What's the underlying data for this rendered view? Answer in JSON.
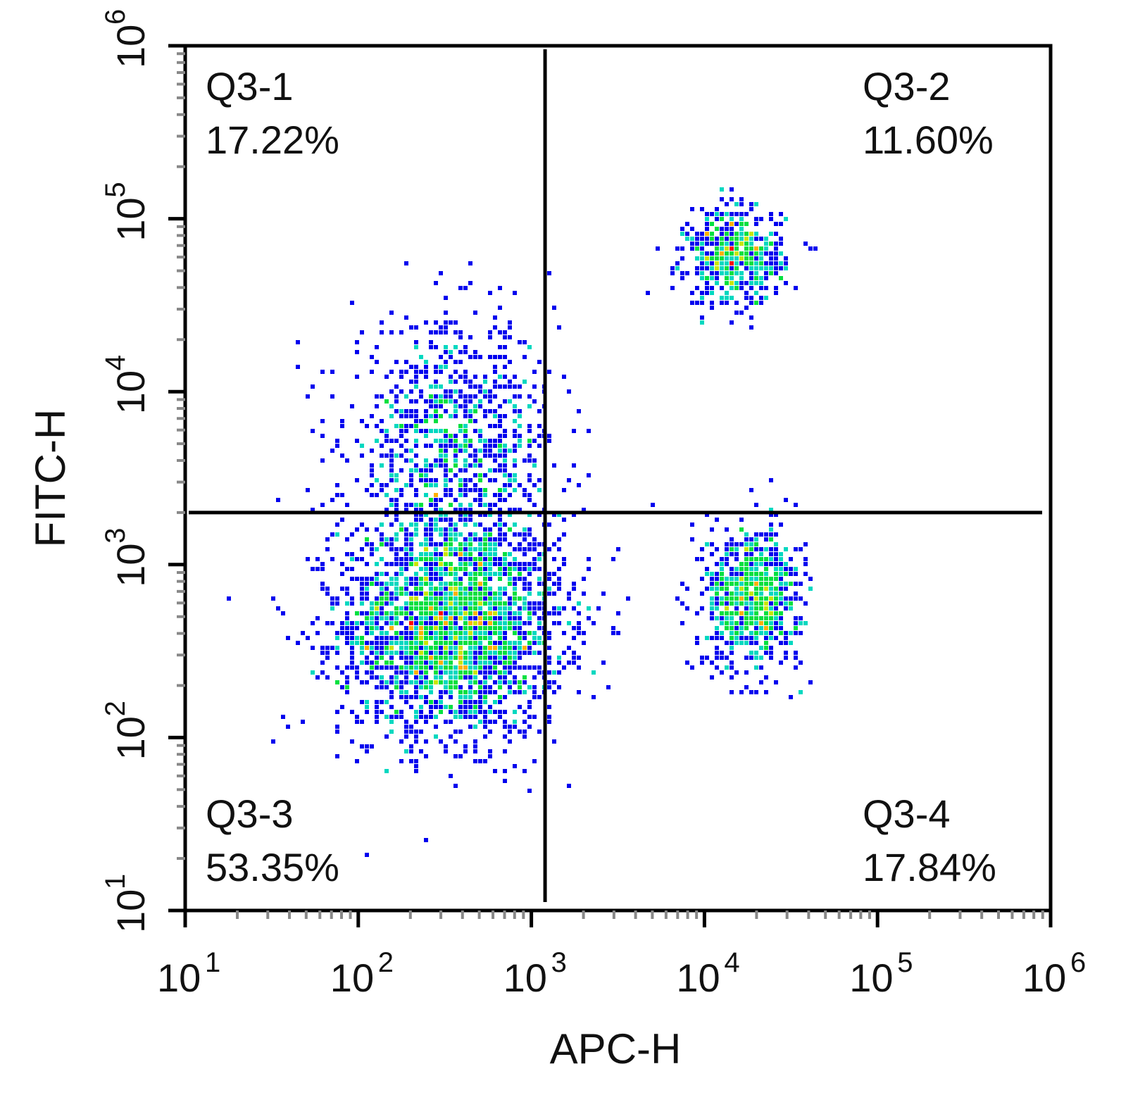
{
  "chart_data": {
    "type": "scatter",
    "xlabel": "APC-H",
    "ylabel": "FITC-H",
    "xscale": "log",
    "yscale": "log",
    "xlim": [
      10,
      1000000
    ],
    "ylim": [
      10,
      1000000
    ],
    "x_ticks": [
      {
        "base": "10",
        "exp": "1",
        "value": 10
      },
      {
        "base": "10",
        "exp": "2",
        "value": 100
      },
      {
        "base": "10",
        "exp": "3",
        "value": 1000
      },
      {
        "base": "10",
        "exp": "4",
        "value": 10000
      },
      {
        "base": "10",
        "exp": "5",
        "value": 100000
      },
      {
        "base": "10",
        "exp": "6",
        "value": 1000000
      }
    ],
    "y_ticks": [
      {
        "base": "10",
        "exp": "1",
        "value": 10
      },
      {
        "base": "10",
        "exp": "2",
        "value": 100
      },
      {
        "base": "10",
        "exp": "3",
        "value": 1000
      },
      {
        "base": "10",
        "exp": "4",
        "value": 10000
      },
      {
        "base": "10",
        "exp": "5",
        "value": 100000
      },
      {
        "base": "10",
        "exp": "6",
        "value": 1000000
      }
    ],
    "gate": {
      "x": 1200,
      "y": 2000
    },
    "quadrants": [
      {
        "name": "Q3-1",
        "percent": "17.22%",
        "position": "top-left"
      },
      {
        "name": "Q3-2",
        "percent": "11.60%",
        "position": "top-right"
      },
      {
        "name": "Q3-3",
        "percent": "53.35%",
        "position": "bottom-left"
      },
      {
        "name": "Q3-4",
        "percent": "17.84%",
        "position": "bottom-right"
      }
    ],
    "populations": [
      {
        "name": "Q3-3 cluster",
        "center_x": 350,
        "center_y": 450,
        "spread_logx": 0.32,
        "spread_logy": 0.32,
        "count": 2600
      },
      {
        "name": "Q3-1 cluster",
        "center_x": 350,
        "center_y": 5000,
        "spread_logx": 0.3,
        "spread_logy": 0.35,
        "count": 900
      },
      {
        "name": "Q3-2 cluster",
        "center_x": 15000,
        "center_y": 60000,
        "spread_logx": 0.14,
        "spread_logy": 0.14,
        "count": 550
      },
      {
        "name": "Q3-4 cluster",
        "center_x": 19000,
        "center_y": 650,
        "spread_logx": 0.14,
        "spread_logy": 0.2,
        "count": 800
      }
    ],
    "density_colors": [
      "#0000ee",
      "#00a0ff",
      "#00d8c0",
      "#00e040",
      "#c8e600",
      "#ffb000",
      "#ff0000"
    ]
  }
}
